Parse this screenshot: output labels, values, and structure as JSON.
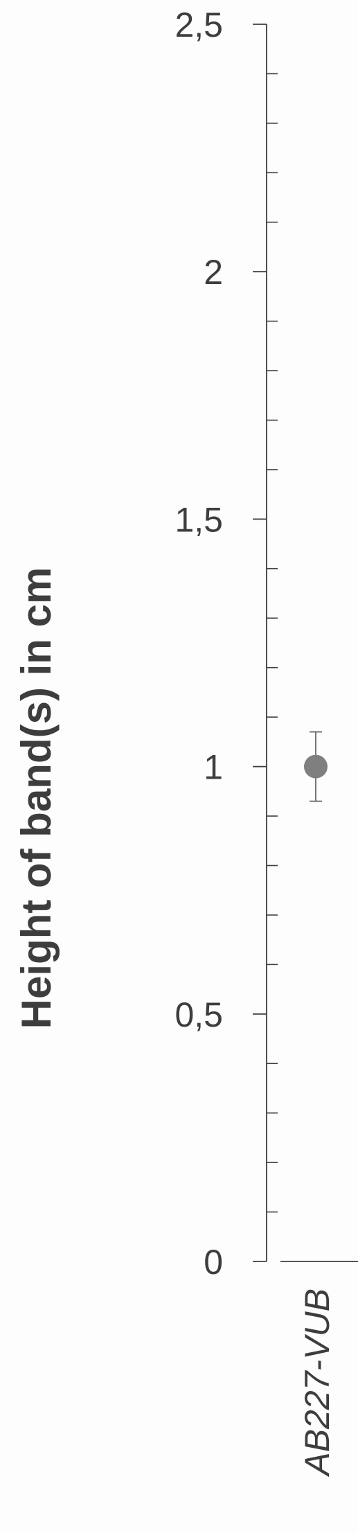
{
  "chart_data": {
    "type": "scatter",
    "ylabel": "Height of band(s) in cm",
    "ylim": [
      0,
      2.5
    ],
    "y_ticks": [
      "0",
      "0,5",
      "1",
      "1,5",
      "2",
      "2,5"
    ],
    "categories": [
      "AB227-VUB"
    ],
    "series": [
      {
        "points": [
          {
            "x": "AB227-VUB",
            "y": 1.0,
            "error_low": 0.93,
            "error_high": 1.07
          }
        ]
      }
    ],
    "marker_color": "#7f7f7f",
    "axis_color": "#3d3d3d",
    "grid": false
  }
}
